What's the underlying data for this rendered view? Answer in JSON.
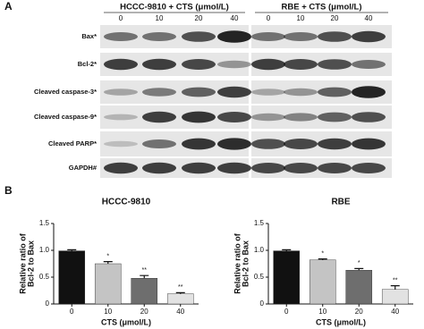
{
  "blot": {
    "panel_label": "A",
    "groups": [
      {
        "title": "HCCC-9810 + CTS (μmol/L)",
        "doses": [
          "0",
          "10",
          "20",
          "40"
        ]
      },
      {
        "title": "RBE + CTS (μmol/L)",
        "doses": [
          "0",
          "10",
          "20",
          "40"
        ]
      }
    ],
    "rows": [
      "Bax*",
      "Bcl-2*",
      "Cleaved caspase-3*",
      "Cleaved caspase-9*",
      "Cleaved PARP*",
      "GAPDH#"
    ]
  },
  "panel_b_label": "B",
  "chart_data": [
    {
      "type": "bar",
      "title": "HCCC-9810",
      "ylabel": [
        "Relative ratio of",
        "Bcl-2 to Bax"
      ],
      "xlabel": "CTS (μmol/L)",
      "categories": [
        "0",
        "10",
        "20",
        "40"
      ],
      "values": [
        0.99,
        0.75,
        0.48,
        0.19
      ],
      "errors": [
        0.02,
        0.04,
        0.05,
        0.02
      ],
      "significance": [
        null,
        "*",
        "**",
        "**"
      ],
      "colors": [
        "#111111",
        "#c4c4c4",
        "#6e6e6e",
        "#e2e2e2"
      ],
      "ylim": [
        0,
        1.5
      ],
      "yticks": [
        0,
        0.5,
        {
          "value": 1,
          "label": "1.0"
        },
        1.5
      ]
    },
    {
      "type": "bar",
      "title": "RBE",
      "ylabel": [
        "Relative ratio of",
        "Bcl-2 to Bax"
      ],
      "xlabel": "CTS (μmol/L)",
      "categories": [
        "0",
        "10",
        "20",
        "40"
      ],
      "values": [
        0.99,
        0.82,
        0.63,
        0.27
      ],
      "errors": [
        0.02,
        0.02,
        0.03,
        0.07
      ],
      "significance": [
        null,
        "*",
        "*",
        "**"
      ],
      "colors": [
        "#111111",
        "#c4c4c4",
        "#6e6e6e",
        "#e2e2e2"
      ],
      "ylim": [
        0,
        1.5
      ],
      "yticks": [
        0,
        0.5,
        {
          "value": 1,
          "label": "1.0"
        },
        1.5
      ]
    }
  ]
}
